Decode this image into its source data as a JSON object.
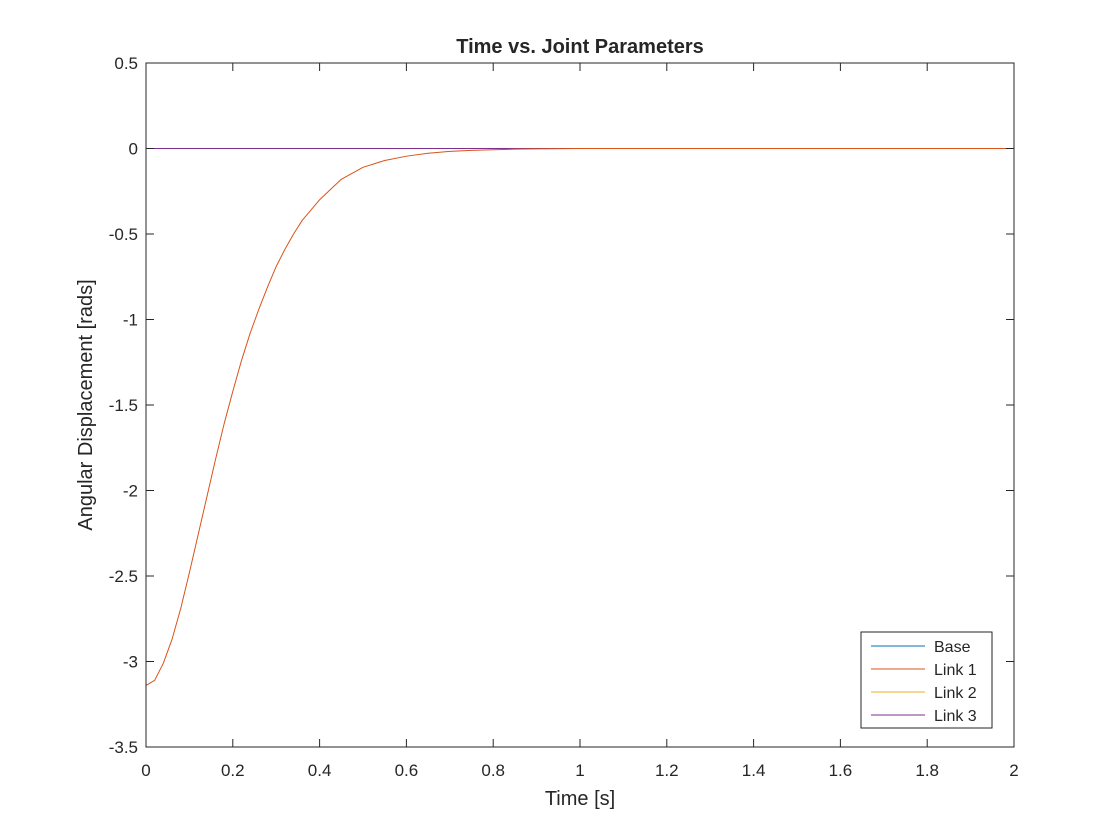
{
  "chart_data": {
    "type": "line",
    "title": "Time vs. Joint Parameters",
    "xlabel": "Time [s]",
    "ylabel": "Angular Displacement [rads]",
    "xlim": [
      0,
      2
    ],
    "ylim": [
      -3.5,
      0.5
    ],
    "xticks": [
      0,
      0.2,
      0.4,
      0.6,
      0.8,
      1,
      1.2,
      1.4,
      1.6,
      1.8,
      2
    ],
    "yticks": [
      -3.5,
      -3,
      -2.5,
      -2,
      -1.5,
      -1,
      -0.5,
      0,
      0.5
    ],
    "xtick_labels": [
      "0",
      "0.2",
      "0.4",
      "0.6",
      "0.8",
      "1",
      "1.2",
      "1.4",
      "1.6",
      "1.8",
      "2"
    ],
    "ytick_labels": [
      "-3.5",
      "-3",
      "-2.5",
      "-2",
      "-1.5",
      "-1",
      "-0.5",
      "0",
      "0.5"
    ],
    "grid": false,
    "legend_position": "bottom-right",
    "series": [
      {
        "name": "Base",
        "color": "#0072BD",
        "x": [
          0,
          2
        ],
        "y": [
          0,
          0
        ]
      },
      {
        "name": "Link 1",
        "color": "#D95319",
        "x": [
          0,
          0.02,
          0.04,
          0.06,
          0.08,
          0.1,
          0.12,
          0.14,
          0.16,
          0.18,
          0.2,
          0.22,
          0.24,
          0.26,
          0.28,
          0.3,
          0.32,
          0.34,
          0.36,
          0.38,
          0.4,
          0.45,
          0.5,
          0.55,
          0.6,
          0.65,
          0.7,
          0.75,
          0.8,
          0.85,
          0.9,
          1.0,
          1.2,
          1.5,
          2.0
        ],
        "y": [
          -3.14,
          -3.11,
          -3.01,
          -2.87,
          -2.69,
          -2.48,
          -2.26,
          -2.04,
          -1.82,
          -1.61,
          -1.42,
          -1.24,
          -1.08,
          -0.94,
          -0.81,
          -0.69,
          -0.59,
          -0.5,
          -0.42,
          -0.36,
          -0.3,
          -0.18,
          -0.11,
          -0.07,
          -0.045,
          -0.028,
          -0.017,
          -0.011,
          -0.007,
          -0.004,
          -0.002,
          0,
          0,
          0,
          0
        ]
      },
      {
        "name": "Link 2",
        "color": "#EDB120",
        "x": [
          0,
          2
        ],
        "y": [
          0,
          0
        ]
      },
      {
        "name": "Link 3",
        "color": "#7E2F8E",
        "x": [
          0,
          2
        ],
        "y": [
          0,
          0
        ]
      }
    ]
  }
}
